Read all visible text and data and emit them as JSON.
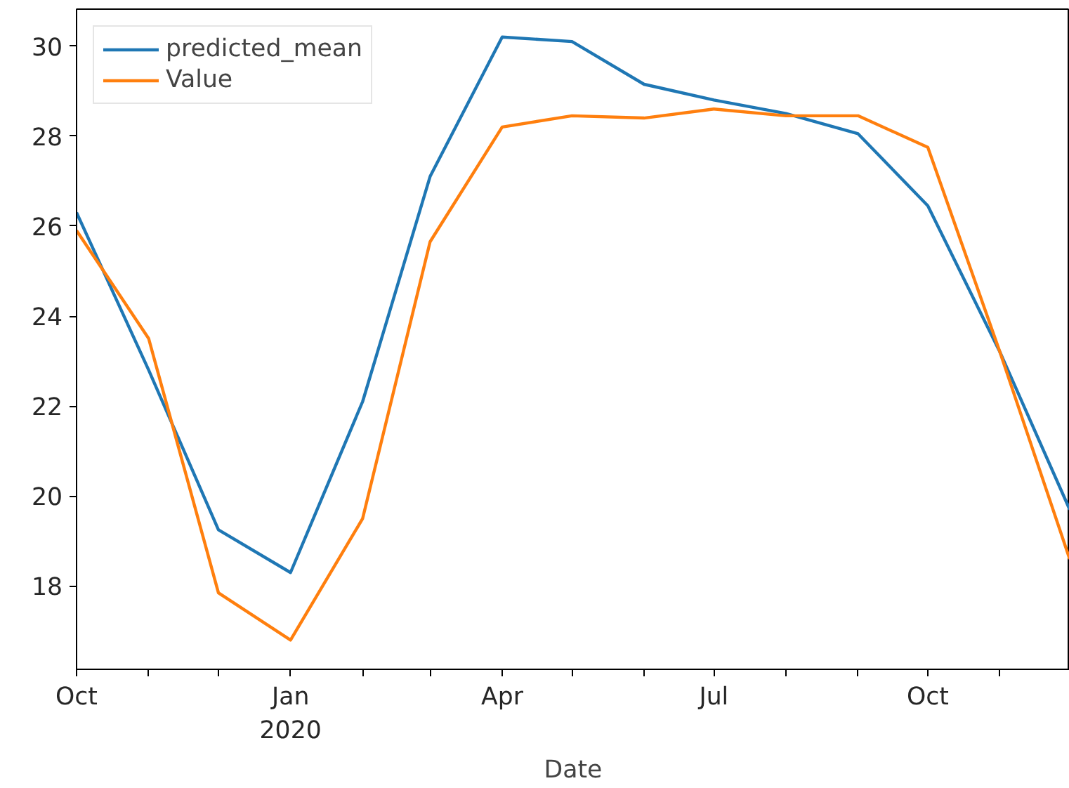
{
  "chart_data": {
    "type": "line",
    "xlabel": "Date",
    "x": [
      "2019-10",
      "2019-11",
      "2019-12",
      "2020-01",
      "2020-02",
      "2020-03",
      "2020-04",
      "2020-05",
      "2020-06",
      "2020-07",
      "2020-08",
      "2020-09",
      "2020-10",
      "2020-11",
      "2020-12"
    ],
    "series": [
      {
        "name": "predicted_mean",
        "color": "#1f77b4",
        "values": [
          26.3,
          22.8,
          19.25,
          18.3,
          22.1,
          27.1,
          30.2,
          30.1,
          29.15,
          28.8,
          28.5,
          28.05,
          26.45,
          23.2,
          19.7
        ]
      },
      {
        "name": "Value",
        "color": "#ff7f0e",
        "values": [
          25.9,
          23.5,
          17.85,
          16.8,
          19.5,
          25.65,
          28.2,
          28.45,
          28.4,
          28.6,
          28.45,
          28.45,
          27.75,
          23.2,
          18.6
        ]
      }
    ],
    "xlim": [
      "2019-10",
      "2020-12"
    ],
    "ylim": [
      16.15,
      30.82
    ],
    "xticks": [
      {
        "value": "2019-10",
        "label": "Oct"
      },
      {
        "value": "2019-11",
        "label": null
      },
      {
        "value": "2019-12",
        "label": null
      },
      {
        "value": "2020-01",
        "label": "Jan\n2020"
      },
      {
        "value": "2020-02",
        "label": null
      },
      {
        "value": "2020-03",
        "label": null
      },
      {
        "value": "2020-04",
        "label": "Apr"
      },
      {
        "value": "2020-05",
        "label": null
      },
      {
        "value": "2020-06",
        "label": null
      },
      {
        "value": "2020-07",
        "label": "Jul"
      },
      {
        "value": "2020-08",
        "label": null
      },
      {
        "value": "2020-09",
        "label": null
      },
      {
        "value": "2020-10",
        "label": "Oct"
      },
      {
        "value": "2020-11",
        "label": null
      },
      {
        "value": "2020-12",
        "label": null
      }
    ],
    "yticks": [
      18,
      20,
      22,
      24,
      26,
      28,
      30
    ],
    "grid": false,
    "legend": "top left",
    "marker": "none",
    "line_style": "solid"
  }
}
